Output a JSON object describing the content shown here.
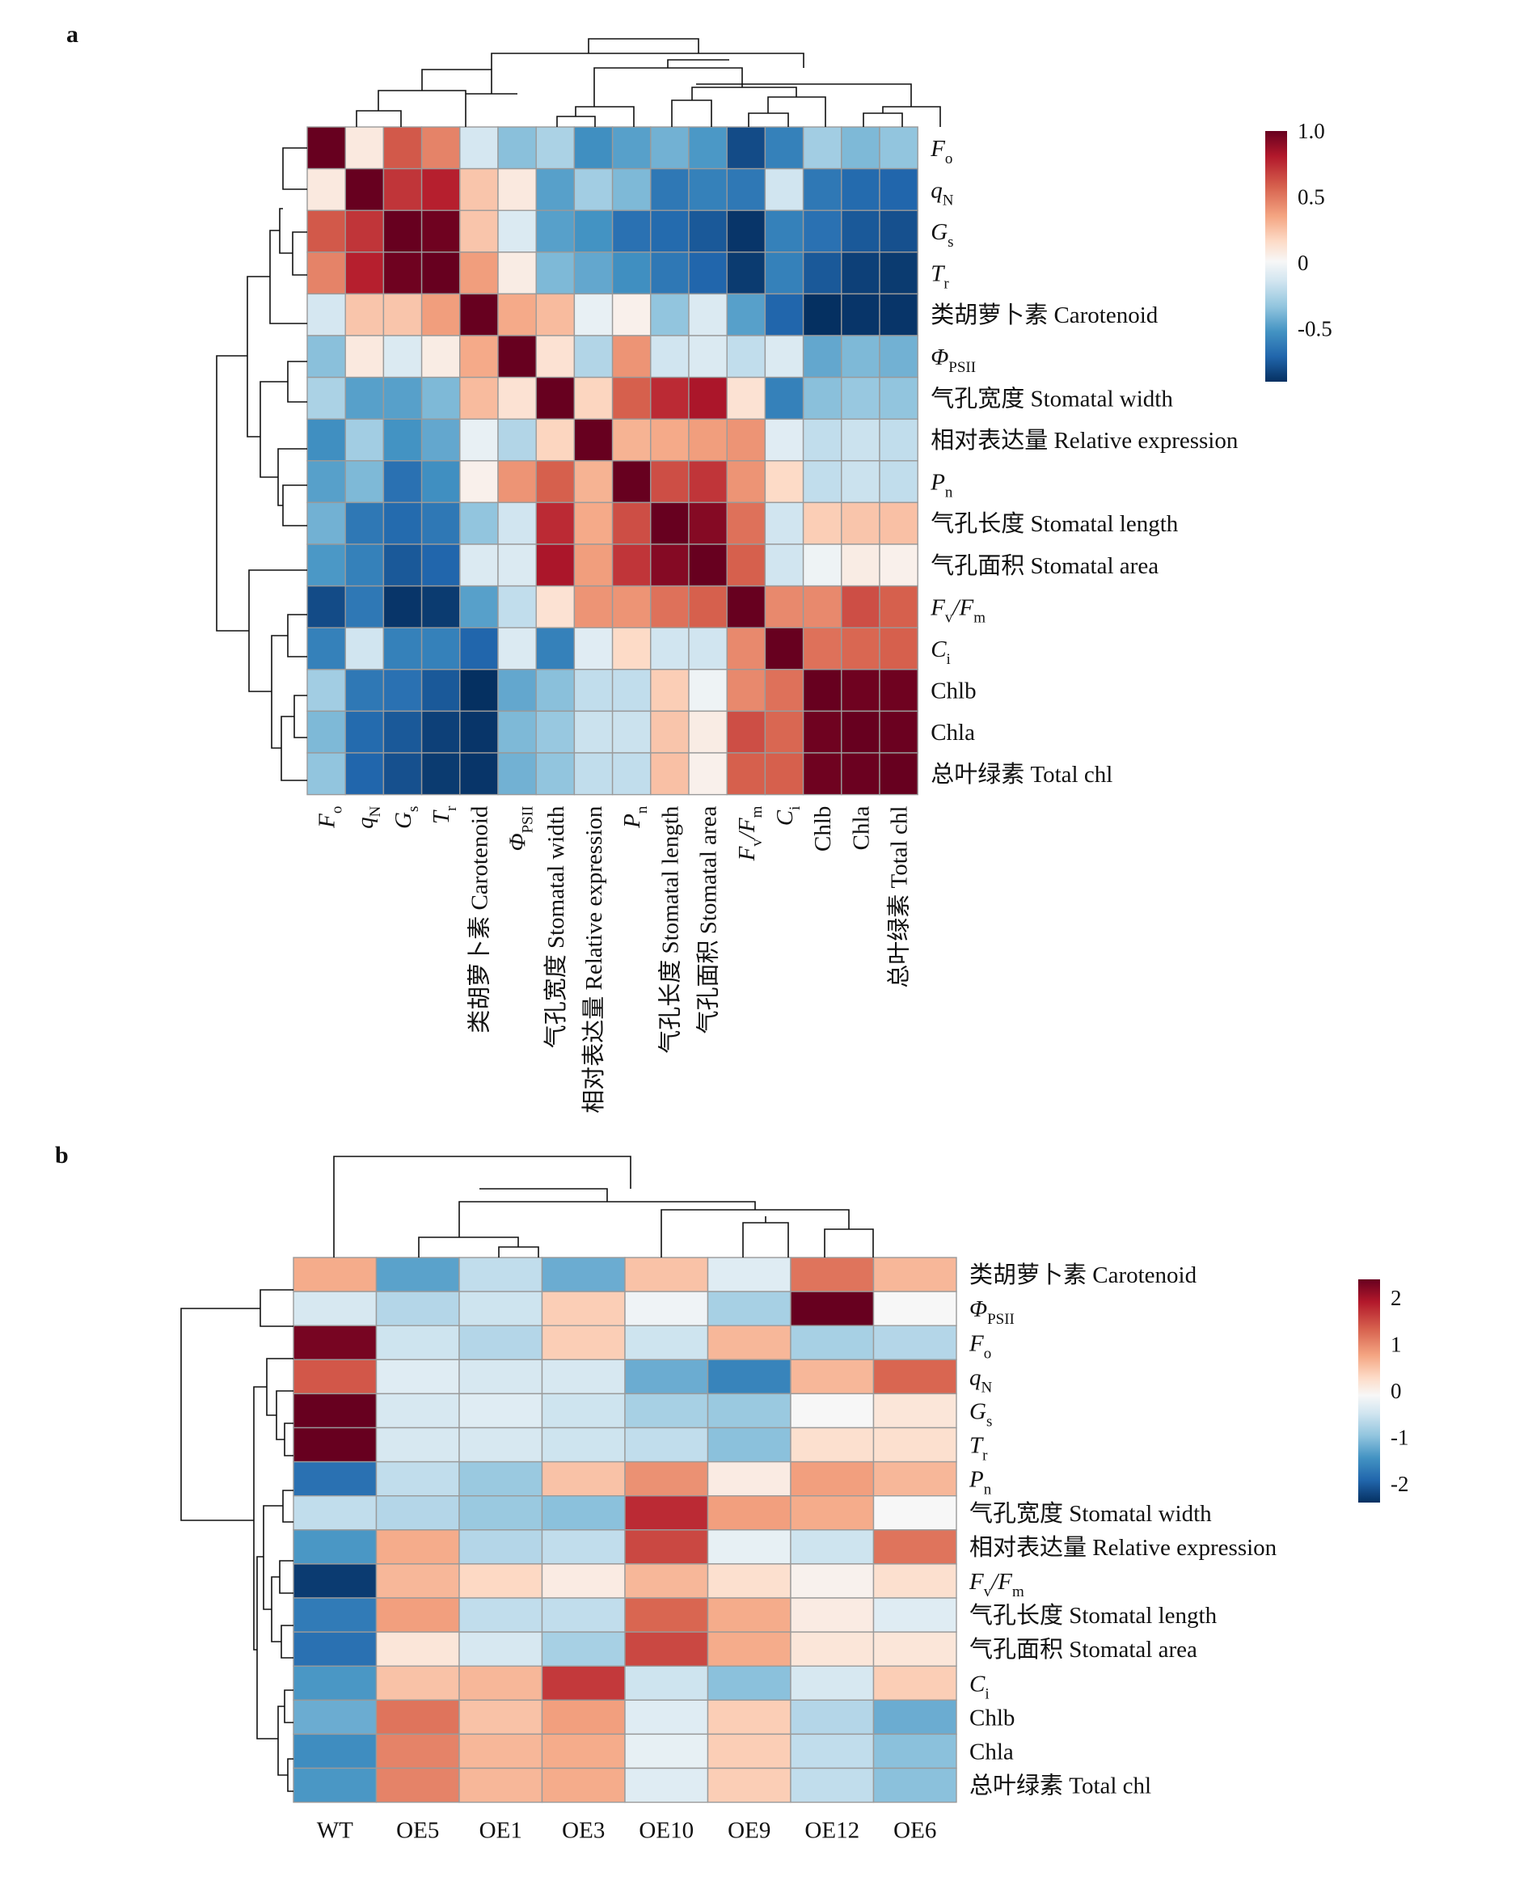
{
  "panel_labels": [
    "a",
    "b"
  ],
  "chart_data": [
    {
      "type": "heatmap",
      "panel": "a",
      "rows": [
        {
          "main": "F",
          "sub": "o",
          "rest": ""
        },
        {
          "main": "q",
          "sub": "N",
          "rest": ""
        },
        {
          "main": "G",
          "sub": "s",
          "rest": ""
        },
        {
          "main": "T",
          "sub": "r",
          "rest": ""
        },
        {
          "main": "",
          "sub": "",
          "rest": "类胡萝卜素 Carotenoid"
        },
        {
          "main": "Φ",
          "sub": "PSII",
          "rest": ""
        },
        {
          "main": "",
          "sub": "",
          "rest": "气孔宽度 Stomatal width"
        },
        {
          "main": "",
          "sub": "",
          "rest": "相对表达量 Relative expression"
        },
        {
          "main": "P",
          "sub": "n",
          "rest": ""
        },
        {
          "main": "",
          "sub": "",
          "rest": "气孔长度 Stomatal length"
        },
        {
          "main": "",
          "sub": "",
          "rest": "气孔面积 Stomatal area"
        },
        {
          "main": "F",
          "sub": "v",
          "rest": "/F",
          "sub2": "m"
        },
        {
          "main": "C",
          "sub": "i",
          "rest": ""
        },
        {
          "main": "",
          "sub": "",
          "rest": "Chlb"
        },
        {
          "main": "",
          "sub": "",
          "rest": "Chla"
        },
        {
          "main": "",
          "sub": "",
          "rest": "总叶绿素 Total chl"
        }
      ],
      "values": [
        [
          1.0,
          0.1,
          0.62,
          0.5,
          -0.18,
          -0.42,
          -0.32,
          -0.62,
          -0.55,
          -0.48,
          -0.58,
          -0.9,
          -0.68,
          -0.35,
          -0.45,
          -0.4
        ],
        [
          0.1,
          1.0,
          0.72,
          0.78,
          0.28,
          0.1,
          -0.55,
          -0.35,
          -0.45,
          -0.72,
          -0.68,
          -0.72,
          -0.2,
          -0.72,
          -0.78,
          -0.8
        ],
        [
          0.62,
          0.72,
          1.0,
          0.98,
          0.28,
          -0.15,
          -0.55,
          -0.6,
          -0.75,
          -0.78,
          -0.85,
          -0.98,
          -0.68,
          -0.75,
          -0.85,
          -0.88
        ],
        [
          0.5,
          0.78,
          0.98,
          1.0,
          0.42,
          0.08,
          -0.45,
          -0.52,
          -0.62,
          -0.72,
          -0.8,
          -0.96,
          -0.68,
          -0.85,
          -0.94,
          -0.96
        ],
        [
          -0.18,
          0.28,
          0.28,
          0.42,
          1.0,
          0.38,
          0.32,
          -0.08,
          0.05,
          -0.4,
          -0.15,
          -0.55,
          -0.8,
          -1.0,
          -0.98,
          -0.98
        ],
        [
          -0.42,
          0.1,
          -0.15,
          0.08,
          0.38,
          1.0,
          0.15,
          -0.3,
          0.45,
          -0.2,
          -0.15,
          -0.25,
          -0.15,
          -0.52,
          -0.45,
          -0.48
        ],
        [
          -0.32,
          -0.55,
          -0.55,
          -0.45,
          0.32,
          0.15,
          1.0,
          0.22,
          0.6,
          0.75,
          0.82,
          0.15,
          -0.68,
          -0.42,
          -0.38,
          -0.4
        ],
        [
          -0.62,
          -0.35,
          -0.6,
          -0.52,
          -0.08,
          -0.3,
          0.22,
          1.0,
          0.35,
          0.38,
          0.42,
          0.45,
          -0.12,
          -0.25,
          -0.22,
          -0.25
        ],
        [
          -0.55,
          -0.45,
          -0.75,
          -0.62,
          0.05,
          0.45,
          0.6,
          0.35,
          1.0,
          0.65,
          0.72,
          0.45,
          0.2,
          -0.25,
          -0.22,
          -0.25
        ],
        [
          -0.48,
          -0.72,
          -0.78,
          -0.72,
          -0.4,
          -0.2,
          0.75,
          0.38,
          0.65,
          1.0,
          0.92,
          0.55,
          -0.2,
          0.25,
          0.28,
          0.3
        ],
        [
          -0.58,
          -0.68,
          -0.85,
          -0.8,
          -0.15,
          -0.15,
          0.82,
          0.42,
          0.72,
          0.92,
          1.0,
          0.6,
          -0.2,
          -0.05,
          0.08,
          0.05
        ],
        [
          -0.9,
          -0.72,
          -0.98,
          -0.96,
          -0.55,
          -0.25,
          0.15,
          0.45,
          0.45,
          0.55,
          0.6,
          1.0,
          0.48,
          0.48,
          0.65,
          0.6
        ],
        [
          -0.68,
          -0.2,
          -0.68,
          -0.68,
          -0.8,
          -0.15,
          -0.68,
          -0.12,
          0.2,
          -0.2,
          -0.2,
          0.48,
          1.0,
          0.55,
          0.58,
          0.6
        ],
        [
          -0.35,
          -0.72,
          -0.75,
          -0.85,
          -1.0,
          -0.52,
          -0.42,
          -0.25,
          -0.25,
          0.25,
          -0.05,
          0.48,
          0.55,
          1.0,
          0.98,
          0.98
        ],
        [
          -0.45,
          -0.78,
          -0.85,
          -0.94,
          -0.98,
          -0.45,
          -0.38,
          -0.22,
          -0.22,
          0.28,
          0.08,
          0.65,
          0.58,
          0.98,
          1.0,
          0.99
        ],
        [
          -0.4,
          -0.8,
          -0.88,
          -0.96,
          -0.98,
          -0.48,
          -0.4,
          -0.25,
          -0.25,
          0.3,
          0.05,
          0.6,
          0.6,
          0.98,
          0.99,
          1.0
        ]
      ],
      "colorbar": {
        "ticks": [
          "1.0",
          "0.5",
          "0",
          "-0.5"
        ],
        "tick_values": [
          1.0,
          0.5,
          0,
          -0.5
        ],
        "range": [
          -0.9,
          1.0
        ]
      },
      "colors": {
        "high": "#67001f",
        "mid": "#f7f7f7",
        "low": "#053061"
      }
    },
    {
      "type": "heatmap",
      "panel": "b",
      "columns": [
        "WT",
        "OE5",
        "OE1",
        "OE3",
        "OE10",
        "OE9",
        "OE12",
        "OE6"
      ],
      "rows": [
        {
          "main": "",
          "sub": "",
          "rest": "类胡萝卜素 Carotenoid"
        },
        {
          "main": "Φ",
          "sub": "PSII",
          "rest": ""
        },
        {
          "main": "F",
          "sub": "o",
          "rest": ""
        },
        {
          "main": "q",
          "sub": "N",
          "rest": ""
        },
        {
          "main": "G",
          "sub": "s",
          "rest": ""
        },
        {
          "main": "T",
          "sub": "r",
          "rest": ""
        },
        {
          "main": "P",
          "sub": "n",
          "rest": ""
        },
        {
          "main": "",
          "sub": "",
          "rest": "气孔宽度 Stomatal width"
        },
        {
          "main": "",
          "sub": "",
          "rest": "相对表达量 Relative expression"
        },
        {
          "main": "F",
          "sub": "v",
          "rest": "/F",
          "sub2": "m"
        },
        {
          "main": "",
          "sub": "",
          "rest": "气孔长度 Stomatal length"
        },
        {
          "main": "",
          "sub": "",
          "rest": "气孔面积 Stomatal area"
        },
        {
          "main": "C",
          "sub": "i",
          "rest": ""
        },
        {
          "main": "",
          "sub": "",
          "rest": "Chlb"
        },
        {
          "main": "",
          "sub": "",
          "rest": "Chla"
        },
        {
          "main": "",
          "sub": "",
          "rest": "总叶绿素 Total chl"
        }
      ],
      "values": [
        [
          0.9,
          -1.3,
          -0.6,
          -1.2,
          0.7,
          -0.3,
          1.3,
          0.8
        ],
        [
          -0.4,
          -0.7,
          -0.5,
          0.6,
          -0.1,
          -0.8,
          2.4,
          0.0
        ],
        [
          2.3,
          -0.5,
          -0.7,
          0.6,
          -0.5,
          0.8,
          -0.8,
          -0.7
        ],
        [
          1.5,
          -0.3,
          -0.4,
          -0.4,
          -1.2,
          -1.6,
          0.8,
          1.4
        ],
        [
          2.4,
          -0.4,
          -0.3,
          -0.5,
          -0.8,
          -0.9,
          0.0,
          0.3
        ],
        [
          2.4,
          -0.4,
          -0.4,
          -0.5,
          -0.6,
          -1.0,
          0.4,
          0.4
        ],
        [
          -1.8,
          -0.6,
          -0.9,
          0.7,
          1.1,
          0.2,
          1.0,
          0.8
        ],
        [
          -0.6,
          -0.7,
          -0.9,
          -1.0,
          1.8,
          1.0,
          0.9,
          0.0
        ],
        [
          -1.4,
          0.9,
          -0.7,
          -0.6,
          1.6,
          -0.2,
          -0.5,
          1.3
        ],
        [
          -2.3,
          0.8,
          0.5,
          0.2,
          0.8,
          0.4,
          0.1,
          0.4
        ],
        [
          -1.7,
          1.0,
          -0.6,
          -0.6,
          1.4,
          0.9,
          0.2,
          -0.3
        ],
        [
          -1.8,
          0.3,
          -0.4,
          -0.8,
          1.6,
          0.9,
          0.3,
          0.3
        ],
        [
          -1.4,
          0.7,
          0.8,
          1.7,
          -0.5,
          -1.0,
          -0.4,
          0.6
        ],
        [
          -1.2,
          1.3,
          0.7,
          1.0,
          -0.3,
          0.6,
          -0.7,
          -1.2
        ],
        [
          -1.5,
          1.2,
          0.8,
          0.9,
          -0.2,
          0.6,
          -0.6,
          -1.0
        ],
        [
          -1.4,
          1.2,
          0.8,
          0.9,
          -0.3,
          0.6,
          -0.6,
          -1.0
        ]
      ],
      "colorbar": {
        "ticks": [
          "2",
          "1",
          "0",
          "-1",
          "-2"
        ],
        "tick_values": [
          2,
          1,
          0,
          -1,
          -2
        ],
        "range": [
          -2.4,
          2.4
        ]
      },
      "colors": {
        "high": "#67001f",
        "mid": "#f7f7f7",
        "low": "#053061"
      }
    }
  ]
}
